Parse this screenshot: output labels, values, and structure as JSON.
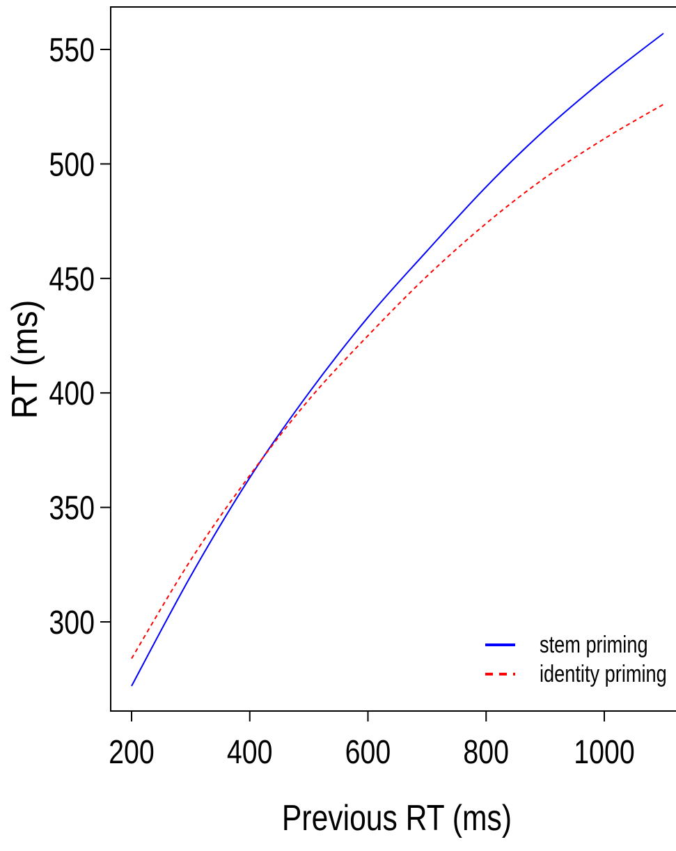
{
  "chart_data": {
    "type": "line",
    "title": "",
    "xlabel": "Previous RT (ms)",
    "ylabel": "RT (ms)",
    "xlim": [
      175,
      1125
    ],
    "ylim": [
      263,
      580
    ],
    "xticks": [
      200,
      400,
      600,
      800,
      1000
    ],
    "yticks": [
      300,
      350,
      400,
      450,
      500,
      550
    ],
    "xtick_labels": [
      "200",
      "400",
      "600",
      "800",
      "1000"
    ],
    "ytick_labels": [
      "300",
      "350",
      "400",
      "450",
      "500",
      "550"
    ],
    "grid": false,
    "legend_position": "bottom-right",
    "x": [
      200,
      300,
      400,
      500,
      600,
      700,
      800,
      900,
      1000,
      1100
    ],
    "series": [
      {
        "name": "stem priming",
        "color": "#0000ff",
        "line_style": "solid",
        "values": [
          272,
          320,
          363,
          400,
          433,
          462,
          490,
          515,
          537,
          557
        ]
      },
      {
        "name": "identity priming",
        "color": "#ff0000",
        "line_style": "dashed",
        "values": [
          284,
          327,
          364,
          397,
          425,
          451,
          474,
          494,
          511,
          526
        ]
      }
    ]
  }
}
